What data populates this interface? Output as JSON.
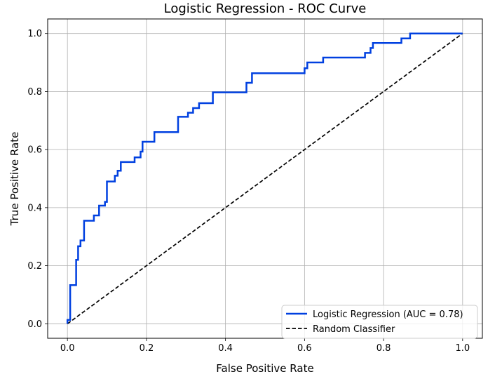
{
  "chart_data": {
    "type": "line",
    "title": "Logistic Regression - ROC Curve",
    "xlabel": "False Positive Rate",
    "ylabel": "True Positive Rate",
    "xlim": [
      -0.05,
      1.05
    ],
    "ylim": [
      -0.05,
      1.05
    ],
    "x_ticks": [
      0.0,
      0.2,
      0.4,
      0.6,
      0.8,
      1.0
    ],
    "y_ticks": [
      0.0,
      0.2,
      0.4,
      0.6,
      0.8,
      1.0
    ],
    "x_tick_labels": [
      "0.0",
      "0.2",
      "0.4",
      "0.6",
      "0.8",
      "1.0"
    ],
    "y_tick_labels": [
      "0.0",
      "0.2",
      "0.4",
      "0.6",
      "0.8",
      "1.0"
    ],
    "grid": true,
    "legend_position": "lower-right",
    "series": [
      {
        "name": "Logistic Regression (AUC = 0.78)",
        "color": "#0040e0",
        "style": "solid",
        "step": true,
        "x": [
          0.0,
          0.0,
          0.007,
          0.007,
          0.022,
          0.022,
          0.027,
          0.027,
          0.033,
          0.033,
          0.042,
          0.042,
          0.067,
          0.067,
          0.08,
          0.08,
          0.095,
          0.095,
          0.1,
          0.1,
          0.12,
          0.12,
          0.127,
          0.127,
          0.135,
          0.135,
          0.17,
          0.17,
          0.185,
          0.185,
          0.19,
          0.19,
          0.22,
          0.22,
          0.28,
          0.28,
          0.305,
          0.305,
          0.318,
          0.318,
          0.333,
          0.333,
          0.368,
          0.368,
          0.453,
          0.453,
          0.467,
          0.467,
          0.6,
          0.6,
          0.607,
          0.607,
          0.647,
          0.647,
          0.753,
          0.753,
          0.767,
          0.767,
          0.773,
          0.773,
          0.845,
          0.845,
          0.867,
          0.867,
          1.0
        ],
        "y": [
          0.0,
          0.013,
          0.013,
          0.133,
          0.133,
          0.22,
          0.22,
          0.267,
          0.267,
          0.287,
          0.287,
          0.355,
          0.355,
          0.373,
          0.373,
          0.407,
          0.407,
          0.42,
          0.42,
          0.49,
          0.49,
          0.51,
          0.51,
          0.527,
          0.527,
          0.557,
          0.557,
          0.573,
          0.573,
          0.593,
          0.593,
          0.627,
          0.627,
          0.66,
          0.66,
          0.713,
          0.713,
          0.727,
          0.727,
          0.743,
          0.743,
          0.76,
          0.76,
          0.797,
          0.797,
          0.83,
          0.83,
          0.863,
          0.863,
          0.88,
          0.88,
          0.9,
          0.9,
          0.917,
          0.917,
          0.933,
          0.933,
          0.95,
          0.95,
          0.967,
          0.967,
          0.983,
          0.983,
          1.0,
          1.0
        ]
      },
      {
        "name": "Random Classifier",
        "color": "#000000",
        "style": "dashed",
        "x": [
          0.0,
          1.0
        ],
        "y": [
          0.0,
          1.0
        ]
      }
    ]
  }
}
